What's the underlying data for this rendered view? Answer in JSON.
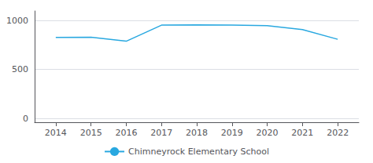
{
  "chart_data": {
    "type": "line",
    "x": [
      2014,
      2015,
      2016,
      2017,
      2018,
      2019,
      2020,
      2021,
      2022
    ],
    "series": [
      {
        "name": "Chimneyrock Elementary School",
        "color": "#29a8e0",
        "values": [
          830,
          832,
          790,
          955,
          957,
          956,
          950,
          910,
          810
        ]
      }
    ],
    "xlim": [
      2013.4,
      2022.6
    ],
    "xticks": [
      2014,
      2015,
      2016,
      2017,
      2018,
      2019,
      2020,
      2021,
      2022
    ],
    "ylim": [
      -40,
      1100
    ],
    "yticks": [
      0,
      500,
      1000
    ],
    "grid": true,
    "legend": "bottom"
  }
}
